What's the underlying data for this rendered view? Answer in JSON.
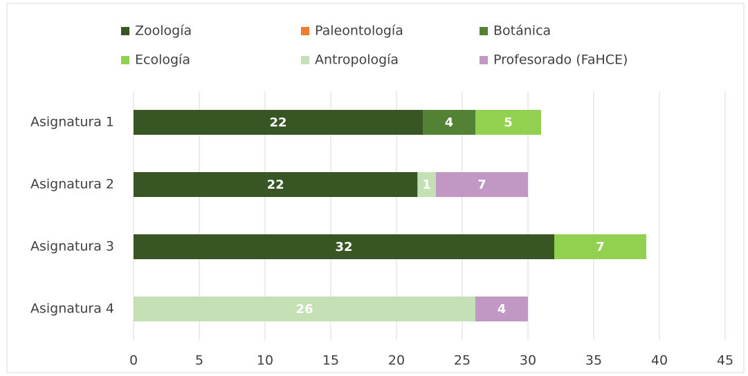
{
  "chart_data": {
    "type": "stacked_barh",
    "categories": [
      "Asignatura 1",
      "Asignatura 2",
      "Asignatura 3",
      "Asignatura 4"
    ],
    "series": [
      {
        "name": "Zoología",
        "color": "#375623",
        "values": [
          22,
          21.6,
          32,
          null
        ],
        "value_labels": [
          "22",
          "22",
          "32",
          null
        ]
      },
      {
        "name": "Paleontología",
        "color": "#ed7d31",
        "values": [
          null,
          null,
          null,
          null
        ]
      },
      {
        "name": "Botánica",
        "color": "#548235",
        "values": [
          4,
          null,
          null,
          null
        ]
      },
      {
        "name": "Ecología",
        "color": "#92d050",
        "values": [
          5,
          null,
          7,
          null
        ]
      },
      {
        "name": "Antropología",
        "color": "#c5e0b4",
        "values": [
          null,
          1.4,
          null,
          26
        ],
        "value_labels": [
          null,
          "1",
          null,
          "26"
        ]
      },
      {
        "name": "Profesorado (FaHCE)",
        "color": "#c197c4",
        "values": [
          null,
          7,
          null,
          4
        ]
      }
    ],
    "xlim": [
      0,
      45
    ],
    "xticks": [
      0,
      5,
      10,
      15,
      20,
      25,
      30,
      35,
      40,
      45
    ],
    "grid": true,
    "legend": "top"
  }
}
